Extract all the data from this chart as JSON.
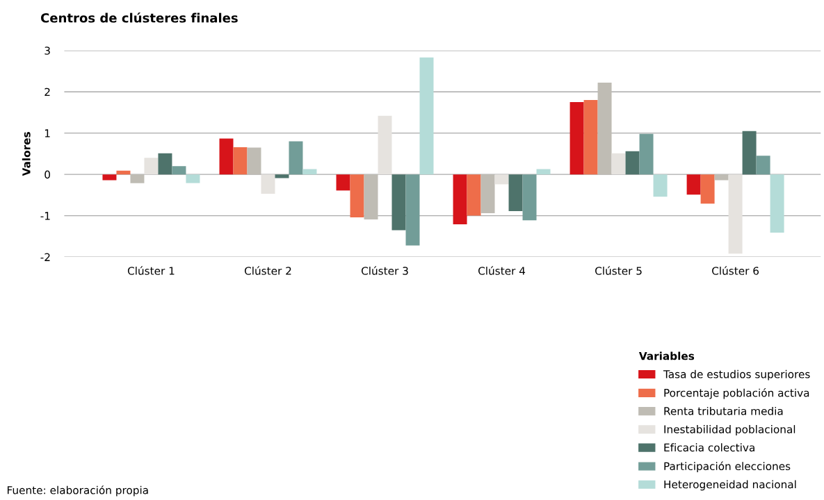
{
  "chart_data": {
    "type": "bar",
    "title": "Centros de clústeres finales",
    "ylabel": "Valores",
    "categories": [
      "Clúster 1",
      "Clúster 2",
      "Clúster 3",
      "Clúster 4",
      "Clúster 5",
      "Clúster 6"
    ],
    "series": [
      {
        "name": "Tasa de estudios superiores",
        "color": "#d7141a",
        "values": [
          -0.14,
          0.87,
          -0.39,
          -1.21,
          1.75,
          -0.49
        ]
      },
      {
        "name": "Porcentaje población activa",
        "color": "#ee6d4a",
        "values": [
          0.09,
          0.66,
          -1.04,
          -1.0,
          1.8,
          -0.71
        ]
      },
      {
        "name": "Renta tributaria media",
        "color": "#bfbcb4",
        "values": [
          -0.21,
          0.65,
          -1.09,
          -0.94,
          2.22,
          -0.14
        ]
      },
      {
        "name": "Inestabilidad poblacional",
        "color": "#e6e3df",
        "values": [
          0.4,
          -0.47,
          1.42,
          -0.24,
          0.51,
          -1.92
        ]
      },
      {
        "name": "Eficacia colectiva",
        "color": "#4e736b",
        "values": [
          0.51,
          -0.09,
          -1.35,
          -0.89,
          0.56,
          1.05
        ]
      },
      {
        "name": "Participación elecciones",
        "color": "#729d98",
        "values": [
          0.2,
          0.8,
          -1.72,
          -1.11,
          0.98,
          0.45
        ]
      },
      {
        "name": "Heterogeneidad nacional",
        "color": "#b4dcd8",
        "values": [
          -0.21,
          0.13,
          2.83,
          0.13,
          -0.54,
          -1.41
        ]
      }
    ],
    "ylim": [
      -2,
      3
    ],
    "yticks": [
      {
        "value": -2,
        "label": "-2"
      },
      {
        "value": -1,
        "label": "-1"
      },
      0,
      1,
      2,
      3
    ],
    "grid": "y",
    "legend": "bottom right",
    "legend_title": "Variables",
    "annotations": [
      "Fuente: elaboración propia"
    ]
  }
}
